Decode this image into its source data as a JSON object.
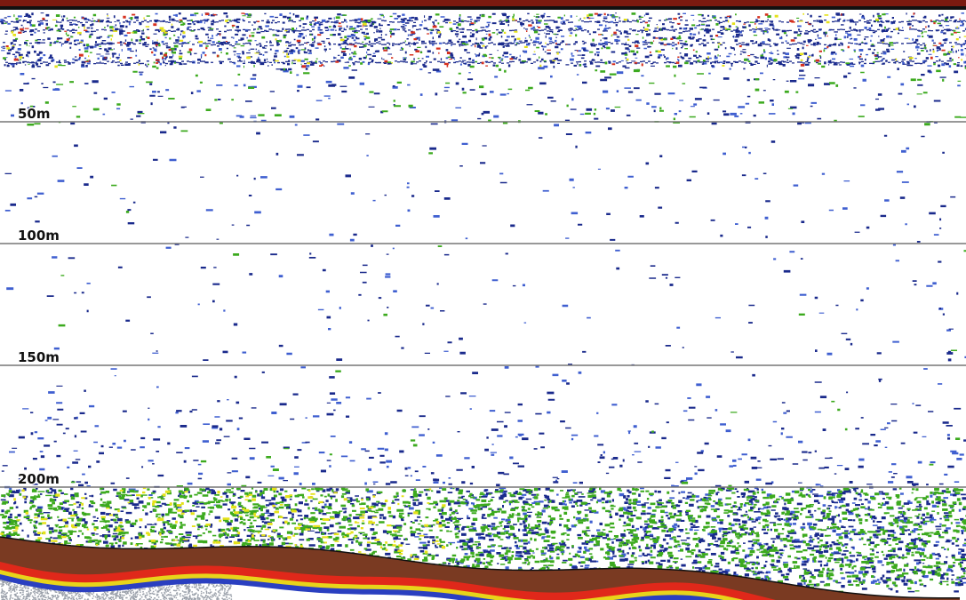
{
  "depth_scale": {
    "lines": [
      {
        "label": "50m"
      },
      {
        "label": "100m"
      },
      {
        "label": "150m"
      },
      {
        "label": "200m"
      }
    ]
  }
}
